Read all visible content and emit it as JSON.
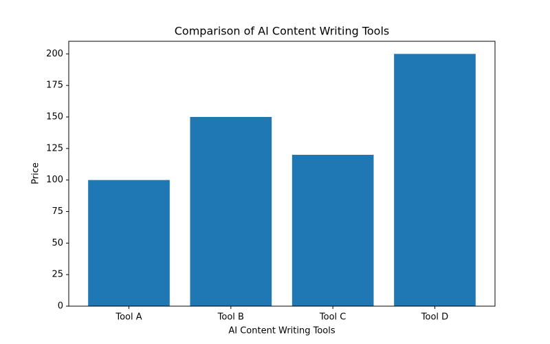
{
  "chart_data": {
    "type": "bar",
    "title": "Comparison of AI Content Writing Tools",
    "x_label": "AI Content Writing Tools",
    "y_label": "Price",
    "categories": [
      "Tool A",
      "Tool B",
      "Tool C",
      "Tool D"
    ],
    "values": [
      100,
      150,
      120,
      200
    ],
    "color": "#1f77b4",
    "ylim": [
      0,
      210
    ],
    "yticks": [
      0,
      25,
      50,
      75,
      100,
      125,
      150,
      175,
      200
    ],
    "grid": false
  }
}
